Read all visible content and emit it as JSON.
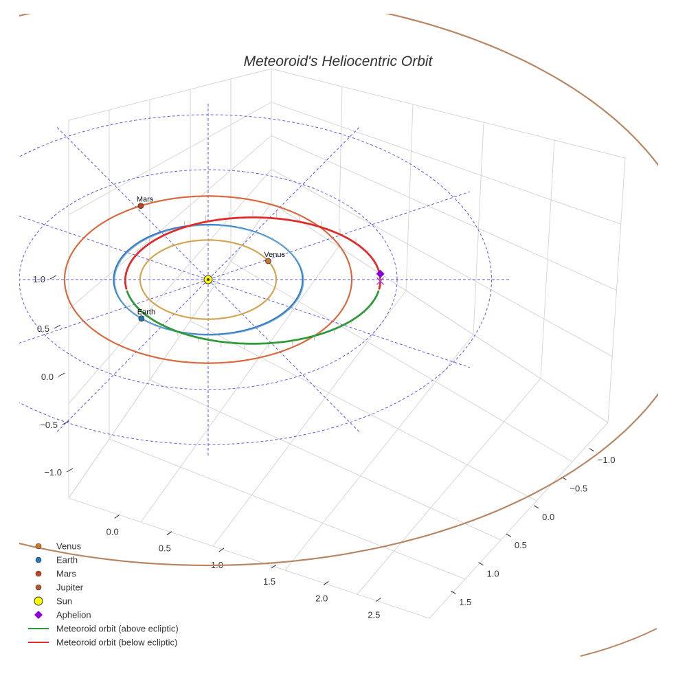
{
  "chart_data": {
    "type": "line",
    "projection": "3d",
    "title": "Meteoroid's Heliocentric Orbit",
    "xlabel": "",
    "ylabel": "",
    "zlabel": "",
    "xlim": [
      -0.1,
      2.6
    ],
    "ylim": [
      -1.1,
      1.6
    ],
    "zlim": [
      -1.2,
      1.2
    ],
    "x_ticks": [
      "0.0",
      "0.5",
      "1.0",
      "1.5",
      "2.0",
      "2.5"
    ],
    "y_ticks": [
      "−1.0",
      "−0.5",
      "0.0",
      "0.5",
      "1.0",
      "1.5"
    ],
    "z_ticks": [
      "−1.0",
      "−0.5",
      "0.0",
      "0.5",
      "1.0"
    ],
    "grid": true,
    "legend_position": "bottom-left",
    "planets": [
      {
        "name": "Venus",
        "a": 0.72,
        "angle_deg": 28,
        "color": "#d4a453",
        "marker_color": "#c9792b",
        "label": "Venus"
      },
      {
        "name": "Earth",
        "a": 1.0,
        "angle_deg": 225,
        "color": "#3a78c4",
        "marker_color": "#1f77b4",
        "label": "Earth"
      },
      {
        "name": "Mars",
        "a": 1.52,
        "angle_deg": 118,
        "color": "#d96a3f",
        "marker_color": "#c2441f",
        "label": "Mars"
      },
      {
        "name": "Jupiter",
        "a": 5.2,
        "color": "#b98663",
        "marker_color": "#b05a2a"
      }
    ],
    "sun": {
      "name": "Sun",
      "position": [
        0,
        0,
        0
      ],
      "color": "#ffff00"
    },
    "ecliptic_reference": {
      "radii": [
        1.0,
        2.0,
        3.0
      ],
      "color": "#5a5ae0"
    },
    "meteoroid": {
      "a": 1.35,
      "e": 0.35,
      "inclination_deg": 5,
      "perihelion_angle_deg": 180,
      "above_color": "#2f9a3a",
      "below_color": "#e02b2b"
    },
    "aphelion": {
      "name": "Aphelion",
      "color": "#8a00d4",
      "distance_au": 1.82
    },
    "series": [
      {
        "name": "Venus",
        "kind": "marker"
      },
      {
        "name": "Earth",
        "kind": "marker"
      },
      {
        "name": "Mars",
        "kind": "marker"
      },
      {
        "name": "Jupiter",
        "kind": "marker"
      },
      {
        "name": "Sun",
        "kind": "marker"
      },
      {
        "name": "Aphelion",
        "kind": "diamond"
      },
      {
        "name": "Meteoroid orbit (above ecliptic)",
        "kind": "line"
      },
      {
        "name": "Meteoroid orbit (below ecliptic)",
        "kind": "line"
      }
    ]
  },
  "legend": [
    {
      "label": "Venus",
      "color": "#c9792b",
      "kind": "marker"
    },
    {
      "label": "Earth",
      "color": "#1f77b4",
      "kind": "marker"
    },
    {
      "label": "Mars",
      "color": "#c2441f",
      "kind": "marker"
    },
    {
      "label": "Jupiter",
      "color": "#b05a2a",
      "kind": "marker"
    },
    {
      "label": "Sun",
      "color": "#ffff00",
      "kind": "sun"
    },
    {
      "label": "Aphelion",
      "color": "#8a00d4",
      "kind": "diamond"
    },
    {
      "label": "Meteoroid orbit (above ecliptic)",
      "color": "#2f9a3a",
      "kind": "line"
    },
    {
      "label": "Meteoroid orbit (below ecliptic)",
      "color": "#e02b2b",
      "kind": "line"
    }
  ]
}
